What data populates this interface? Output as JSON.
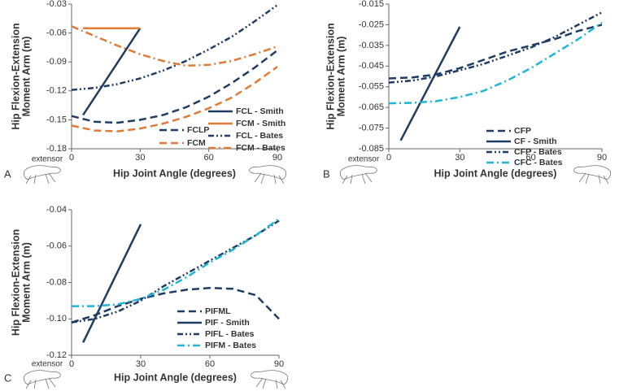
{
  "chart_data": [
    {
      "type": "line",
      "panel": "A",
      "xlabel": "Hip Joint Angle (degrees)",
      "ylabel": [
        "Hip Flexion-Extension",
        "Moment Arm (m)"
      ],
      "annotation": "extensor",
      "xlim": [
        0,
        90
      ],
      "xticks": [
        0,
        30,
        60,
        90
      ],
      "ylim": [
        -0.18,
        -0.03
      ],
      "yticks": [
        -0.18,
        -0.15,
        -0.12,
        -0.09,
        -0.06,
        -0.03
      ],
      "series": [
        {
          "name": "FCLP",
          "color": "#1f3d63",
          "style": "dashed",
          "x": [
            0,
            10,
            20,
            30,
            40,
            50,
            60,
            70,
            80,
            90
          ],
          "values": [
            -0.146,
            -0.152,
            -0.153,
            -0.15,
            -0.145,
            -0.137,
            -0.126,
            -0.112,
            -0.096,
            -0.078
          ]
        },
        {
          "name": "FCM",
          "color": "#e07a37",
          "style": "dashed",
          "x": [
            0,
            10,
            20,
            30,
            40,
            50,
            60,
            70,
            80,
            90
          ],
          "values": [
            -0.156,
            -0.161,
            -0.162,
            -0.159,
            -0.154,
            -0.147,
            -0.138,
            -0.127,
            -0.112,
            -0.095
          ]
        },
        {
          "name": "FCL - Smith",
          "color": "#1f3d63",
          "style": "solid",
          "x": [
            5,
            30
          ],
          "values": [
            -0.145,
            -0.055
          ]
        },
        {
          "name": "FCM - Smith",
          "color": "#e07a37",
          "style": "solid",
          "x": [
            5,
            30
          ],
          "values": [
            -0.055,
            -0.055
          ]
        },
        {
          "name": "FCL - Bates",
          "color": "#1f3d63",
          "style": "dash-dot-dot",
          "x": [
            0,
            10,
            20,
            30,
            40,
            50,
            60,
            70,
            80,
            90
          ],
          "values": [
            -0.119,
            -0.117,
            -0.113,
            -0.107,
            -0.099,
            -0.089,
            -0.077,
            -0.064,
            -0.048,
            -0.031
          ]
        },
        {
          "name": "FCM - Bates",
          "color": "#e07a37",
          "style": "dash-dot",
          "x": [
            0,
            10,
            20,
            30,
            40,
            50,
            60,
            70,
            80,
            90
          ],
          "values": [
            -0.053,
            -0.063,
            -0.073,
            -0.082,
            -0.089,
            -0.094,
            -0.093,
            -0.089,
            -0.082,
            -0.074
          ]
        }
      ]
    },
    {
      "type": "line",
      "panel": "B",
      "xlabel": "Hip Joint Angle (degrees)",
      "ylabel": [
        "Hip Flexion-Extension",
        "Moment Arm (m)"
      ],
      "annotation": "extensor",
      "xlim": [
        0,
        90
      ],
      "xticks": [
        0,
        30,
        60,
        90
      ],
      "ylim": [
        -0.085,
        -0.015
      ],
      "yticks": [
        -0.085,
        -0.075,
        -0.065,
        -0.055,
        -0.045,
        -0.035,
        -0.025,
        -0.015
      ],
      "series": [
        {
          "name": "CFP",
          "color": "#1f3d63",
          "style": "dashed",
          "x": [
            0,
            10,
            20,
            30,
            40,
            50,
            60,
            70,
            80,
            90
          ],
          "values": [
            -0.051,
            -0.0505,
            -0.049,
            -0.046,
            -0.042,
            -0.038,
            -0.035,
            -0.032,
            -0.028,
            -0.025
          ]
        },
        {
          "name": "CF - Smith",
          "color": "#1f3d63",
          "style": "solid",
          "x": [
            5,
            30
          ],
          "values": [
            -0.081,
            -0.026
          ]
        },
        {
          "name": "CFP - Bates",
          "color": "#1f3d63",
          "style": "dash-dot-dot",
          "x": [
            0,
            10,
            20,
            30,
            40,
            50,
            60,
            70,
            80,
            90
          ],
          "values": [
            -0.053,
            -0.052,
            -0.05,
            -0.047,
            -0.044,
            -0.04,
            -0.036,
            -0.031,
            -0.025,
            -0.019
          ]
        },
        {
          "name": "CFC - Bates",
          "color": "#1fb5d9",
          "style": "dash-dot",
          "x": [
            0,
            10,
            20,
            30,
            40,
            50,
            60,
            70,
            80,
            90
          ],
          "values": [
            -0.063,
            -0.0628,
            -0.062,
            -0.06,
            -0.057,
            -0.052,
            -0.046,
            -0.039,
            -0.032,
            -0.024
          ]
        }
      ]
    },
    {
      "type": "line",
      "panel": "C",
      "xlabel": "Hip Joint Angle (degrees)",
      "ylabel": [
        "Hip Flexion-Extension",
        "Moment Arm (m)"
      ],
      "annotation": "extensor",
      "xlim": [
        0,
        90
      ],
      "xticks": [
        0,
        30,
        60,
        90
      ],
      "ylim": [
        -0.12,
        -0.04
      ],
      "yticks": [
        -0.12,
        {
          "value": -0.1,
          "label": "-0.10"
        },
        -0.08,
        -0.06,
        -0.04
      ],
      "series": [
        {
          "name": "PIFML",
          "color": "#1f3d63",
          "style": "dashed",
          "x": [
            0,
            10,
            20,
            30,
            40,
            50,
            60,
            70,
            80,
            90
          ],
          "values": [
            -0.102,
            -0.098,
            -0.093,
            -0.089,
            -0.086,
            -0.084,
            -0.083,
            -0.0835,
            -0.087,
            -0.1
          ]
        },
        {
          "name": "PIF - Smith",
          "color": "#1f3d63",
          "style": "solid",
          "x": [
            5,
            30
          ],
          "values": [
            -0.113,
            -0.048
          ]
        },
        {
          "name": "PIFL - Bates",
          "color": "#1f3d63",
          "style": "dash-dot-dot",
          "x": [
            0,
            10,
            20,
            30,
            40,
            50,
            60,
            70,
            80,
            90
          ],
          "values": [
            -0.102,
            -0.1,
            -0.096,
            -0.09,
            -0.082,
            -0.075,
            -0.068,
            -0.061,
            -0.054,
            -0.046
          ]
        },
        {
          "name": "PIFM - Bates",
          "color": "#1fb5d9",
          "style": "dash-dot",
          "x": [
            0,
            10,
            20,
            30,
            40,
            50,
            60,
            70,
            80,
            90
          ],
          "values": [
            -0.093,
            -0.093,
            -0.092,
            -0.089,
            -0.084,
            -0.077,
            -0.069,
            -0.062,
            -0.054,
            -0.045
          ]
        }
      ]
    }
  ]
}
